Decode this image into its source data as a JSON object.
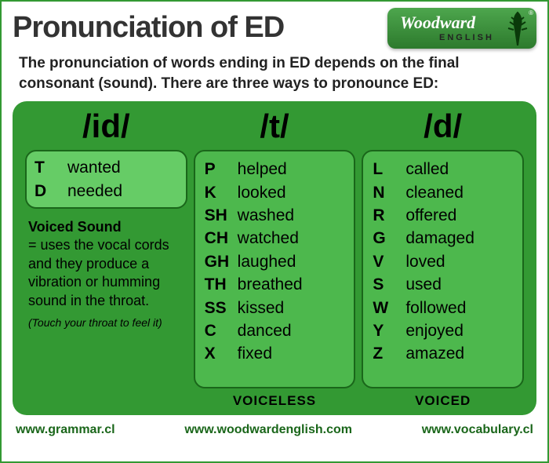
{
  "title": "Pronunciation of ED",
  "logo": {
    "main": "Woodward",
    "sub": "ENGLISH",
    "reg": "®"
  },
  "intro": "The pronunciation of words ending in ED depends on the final consonant (sound). There are three ways to pronounce ED:",
  "columns": {
    "id": {
      "header": "/id/",
      "rows": [
        {
          "letter": "T",
          "word": "wanted"
        },
        {
          "letter": "D",
          "word": "needed"
        }
      ]
    },
    "t": {
      "header": "/t/",
      "rows": [
        {
          "letter": "P",
          "word": "helped"
        },
        {
          "letter": "K",
          "word": "looked"
        },
        {
          "letter": "SH",
          "word": "washed"
        },
        {
          "letter": "CH",
          "word": "watched"
        },
        {
          "letter": "GH",
          "word": "laughed"
        },
        {
          "letter": "TH",
          "word": "breathed"
        },
        {
          "letter": "SS",
          "word": "kissed"
        },
        {
          "letter": "C",
          "word": "danced"
        },
        {
          "letter": "X",
          "word": "fixed"
        }
      ],
      "footer": "VOICELESS"
    },
    "d": {
      "header": "/d/",
      "rows": [
        {
          "letter": "L",
          "word": "called"
        },
        {
          "letter": "N",
          "word": "cleaned"
        },
        {
          "letter": "R",
          "word": "offered"
        },
        {
          "letter": "G",
          "word": "damaged"
        },
        {
          "letter": "V",
          "word": "loved"
        },
        {
          "letter": "S",
          "word": "used"
        },
        {
          "letter": "W",
          "word": "followed"
        },
        {
          "letter": "Y",
          "word": "enjoyed"
        },
        {
          "letter": "Z",
          "word": "amazed"
        }
      ],
      "footer": "VOICED"
    }
  },
  "voiced": {
    "heading": "Voiced Sound",
    "body": "= uses the vocal cords and they produce a vibration or humming sound in the throat.",
    "note": "(Touch your throat to feel it)"
  },
  "footer": {
    "links": [
      "www.grammar.cl",
      "www.woodwardenglish.com",
      "www.vocabulary.cl"
    ]
  },
  "colors": {
    "panel": "#339933",
    "box_light": "#66cc66",
    "box_dark": "#4db84d",
    "border": "#1a661a"
  }
}
